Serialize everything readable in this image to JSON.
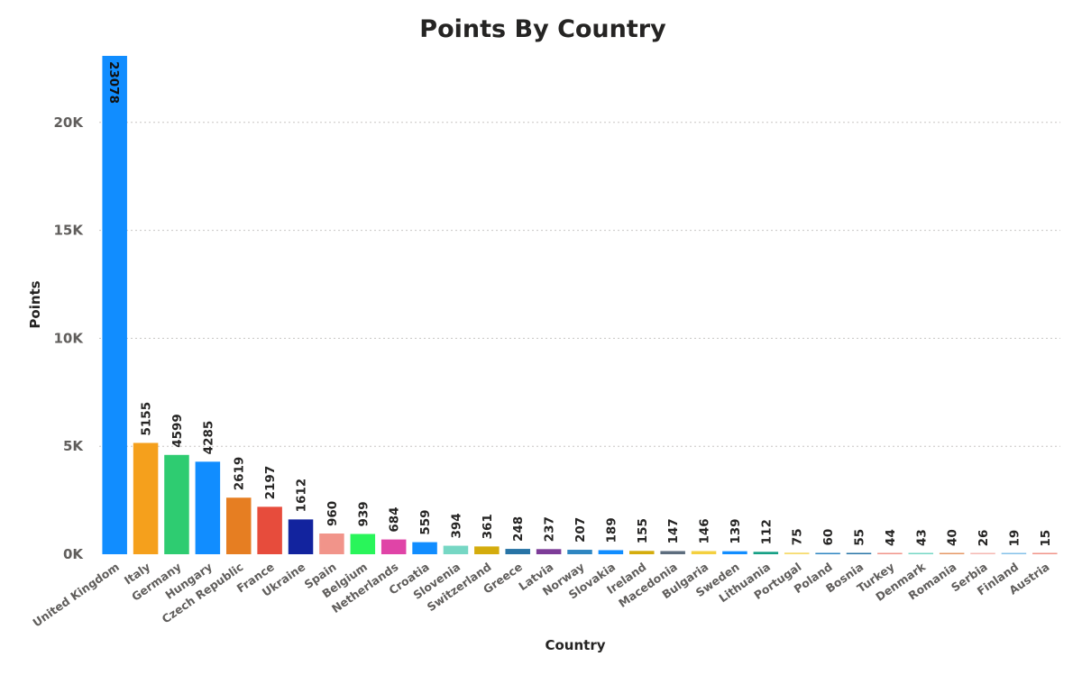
{
  "chart_data": {
    "type": "bar",
    "title": "Points By Country",
    "xlabel": "Country",
    "ylabel": "Points",
    "ylim": [
      0,
      23078
    ],
    "yticks": [
      0,
      5000,
      10000,
      15000,
      20000
    ],
    "ytick_labels": [
      "0K",
      "5K",
      "10K",
      "15K",
      "20K"
    ],
    "grid": true,
    "categories": [
      "United Kingdom",
      "Italy",
      "Germany",
      "Hungary",
      "Czech Republic",
      "France",
      "Ukraine",
      "Spain",
      "Belgium",
      "Netherlands",
      "Croatia",
      "Slovenia",
      "Switzerland",
      "Greece",
      "Latvia",
      "Norway",
      "Slovakia",
      "Ireland",
      "Macedonia",
      "Bulgaria",
      "Sweden",
      "Lithuania",
      "Portugal",
      "Poland",
      "Bosnia",
      "Turkey",
      "Denmark",
      "Romania",
      "Serbia",
      "Finland",
      "Austria"
    ],
    "values": [
      23078,
      5155,
      4599,
      4285,
      2619,
      2197,
      1612,
      960,
      939,
      684,
      559,
      394,
      361,
      248,
      237,
      207,
      189,
      155,
      147,
      146,
      139,
      112,
      75,
      60,
      55,
      44,
      43,
      40,
      26,
      19,
      15
    ],
    "colors": [
      "#118DFF",
      "#F5A01C",
      "#2ECC71",
      "#118DFF",
      "#E67E22",
      "#E74C3C",
      "#12239E",
      "#F1948A",
      "#29F55A",
      "#E044A7",
      "#118DFF",
      "#76D7C4",
      "#D4AC0D",
      "#2874A6",
      "#7D3C98",
      "#2E86C1",
      "#118DFF",
      "#D4AC0D",
      "#5D6D7E",
      "#F4D03F",
      "#118DFF",
      "#16A085",
      "#F7DC6F",
      "#2E86C1",
      "#2874A6",
      "#F1948A",
      "#76D7C4",
      "#E59866",
      "#F5B7B1",
      "#85C1E9",
      "#F1948A"
    ]
  }
}
